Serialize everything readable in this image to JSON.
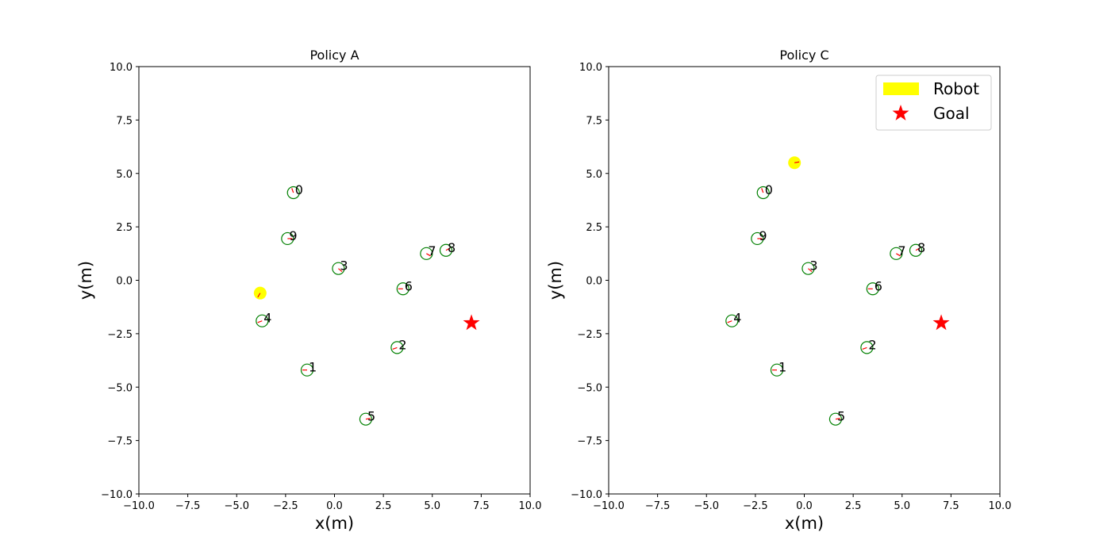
{
  "chart_data": [
    {
      "type": "scatter",
      "title": "Policy A",
      "xlabel": "x(m)",
      "ylabel": "y(m)",
      "xlim": [
        -10,
        10
      ],
      "ylim": [
        -10,
        10
      ],
      "xticks": [
        -10,
        -7.5,
        -5,
        -2.5,
        0,
        2.5,
        5,
        7.5,
        10
      ],
      "yticks": [
        -10,
        -7.5,
        -5,
        -2.5,
        0,
        2.5,
        5,
        7.5,
        10
      ],
      "xtick_labels": [
        "−10.0",
        "−7.5",
        "−5.0",
        "−2.5",
        "0.0",
        "2.5",
        "5.0",
        "7.5",
        "10.0"
      ],
      "ytick_labels": [
        "−10.0",
        "−7.5",
        "−5.0",
        "−2.5",
        "0.0",
        "2.5",
        "5.0",
        "7.5",
        "10.0"
      ],
      "grid": false,
      "legend": null,
      "robot": {
        "x": -3.8,
        "y": -0.6,
        "color": "#ffff00",
        "heading_deg": -120
      },
      "goal": {
        "x": 7.0,
        "y": -2.0,
        "color": "#ff0000"
      },
      "humans": [
        {
          "label": "0",
          "x": -2.1,
          "y": 4.1,
          "heading_deg": 110
        },
        {
          "label": "1",
          "x": -1.4,
          "y": -4.2,
          "heading_deg": 180
        },
        {
          "label": "2",
          "x": 3.2,
          "y": -3.15,
          "heading_deg": 200
        },
        {
          "label": "3",
          "x": 0.2,
          "y": 0.55,
          "heading_deg": -40
        },
        {
          "label": "4",
          "x": -3.7,
          "y": -1.9,
          "heading_deg": 200
        },
        {
          "label": "5",
          "x": 1.6,
          "y": -6.5,
          "heading_deg": 10
        },
        {
          "label": "6",
          "x": 3.5,
          "y": -0.4,
          "heading_deg": 180
        },
        {
          "label": "7",
          "x": 4.7,
          "y": 1.25,
          "heading_deg": -30
        },
        {
          "label": "8",
          "x": 5.7,
          "y": 1.4,
          "heading_deg": 30
        },
        {
          "label": "9",
          "x": -2.4,
          "y": 1.95,
          "heading_deg": 0
        }
      ],
      "human_circle_color": "#008000",
      "heading_color": "#ff0000"
    },
    {
      "type": "scatter",
      "title": "Policy C",
      "xlabel": "x(m)",
      "ylabel": "y(m)",
      "xlim": [
        -10,
        10
      ],
      "ylim": [
        -10,
        10
      ],
      "xticks": [
        -10,
        -7.5,
        -5,
        -2.5,
        0,
        2.5,
        5,
        7.5,
        10
      ],
      "yticks": [
        -10,
        -7.5,
        -5,
        -2.5,
        0,
        2.5,
        5,
        7.5,
        10
      ],
      "xtick_labels": [
        "−10.0",
        "−7.5",
        "−5.0",
        "−2.5",
        "0.0",
        "2.5",
        "5.0",
        "7.5",
        "10.0"
      ],
      "ytick_labels": [
        "−10.0",
        "−7.5",
        "−5.0",
        "−2.5",
        "0.0",
        "2.5",
        "5.0",
        "7.5",
        "10.0"
      ],
      "grid": false,
      "legend": {
        "placement": "top-right",
        "entries": [
          {
            "label": "Robot",
            "color": "#ffff00",
            "marker": "patch"
          },
          {
            "label": "Goal",
            "color": "#ff0000",
            "marker": "star"
          }
        ]
      },
      "robot": {
        "x": -0.5,
        "y": 5.5,
        "color": "#ffff00",
        "heading_deg": 10
      },
      "goal": {
        "x": 7.0,
        "y": -2.0,
        "color": "#ff0000"
      },
      "humans": [
        {
          "label": "0",
          "x": -2.1,
          "y": 4.1,
          "heading_deg": 110
        },
        {
          "label": "1",
          "x": -1.4,
          "y": -4.2,
          "heading_deg": 180
        },
        {
          "label": "2",
          "x": 3.2,
          "y": -3.15,
          "heading_deg": 200
        },
        {
          "label": "3",
          "x": 0.2,
          "y": 0.55,
          "heading_deg": -40
        },
        {
          "label": "4",
          "x": -3.7,
          "y": -1.9,
          "heading_deg": 200
        },
        {
          "label": "5",
          "x": 1.6,
          "y": -6.5,
          "heading_deg": 10
        },
        {
          "label": "6",
          "x": 3.5,
          "y": -0.4,
          "heading_deg": 180
        },
        {
          "label": "7",
          "x": 4.7,
          "y": 1.25,
          "heading_deg": -30
        },
        {
          "label": "8",
          "x": 5.7,
          "y": 1.4,
          "heading_deg": 30
        },
        {
          "label": "9",
          "x": -2.4,
          "y": 1.95,
          "heading_deg": 0
        }
      ],
      "human_circle_color": "#008000",
      "heading_color": "#ff0000"
    }
  ]
}
